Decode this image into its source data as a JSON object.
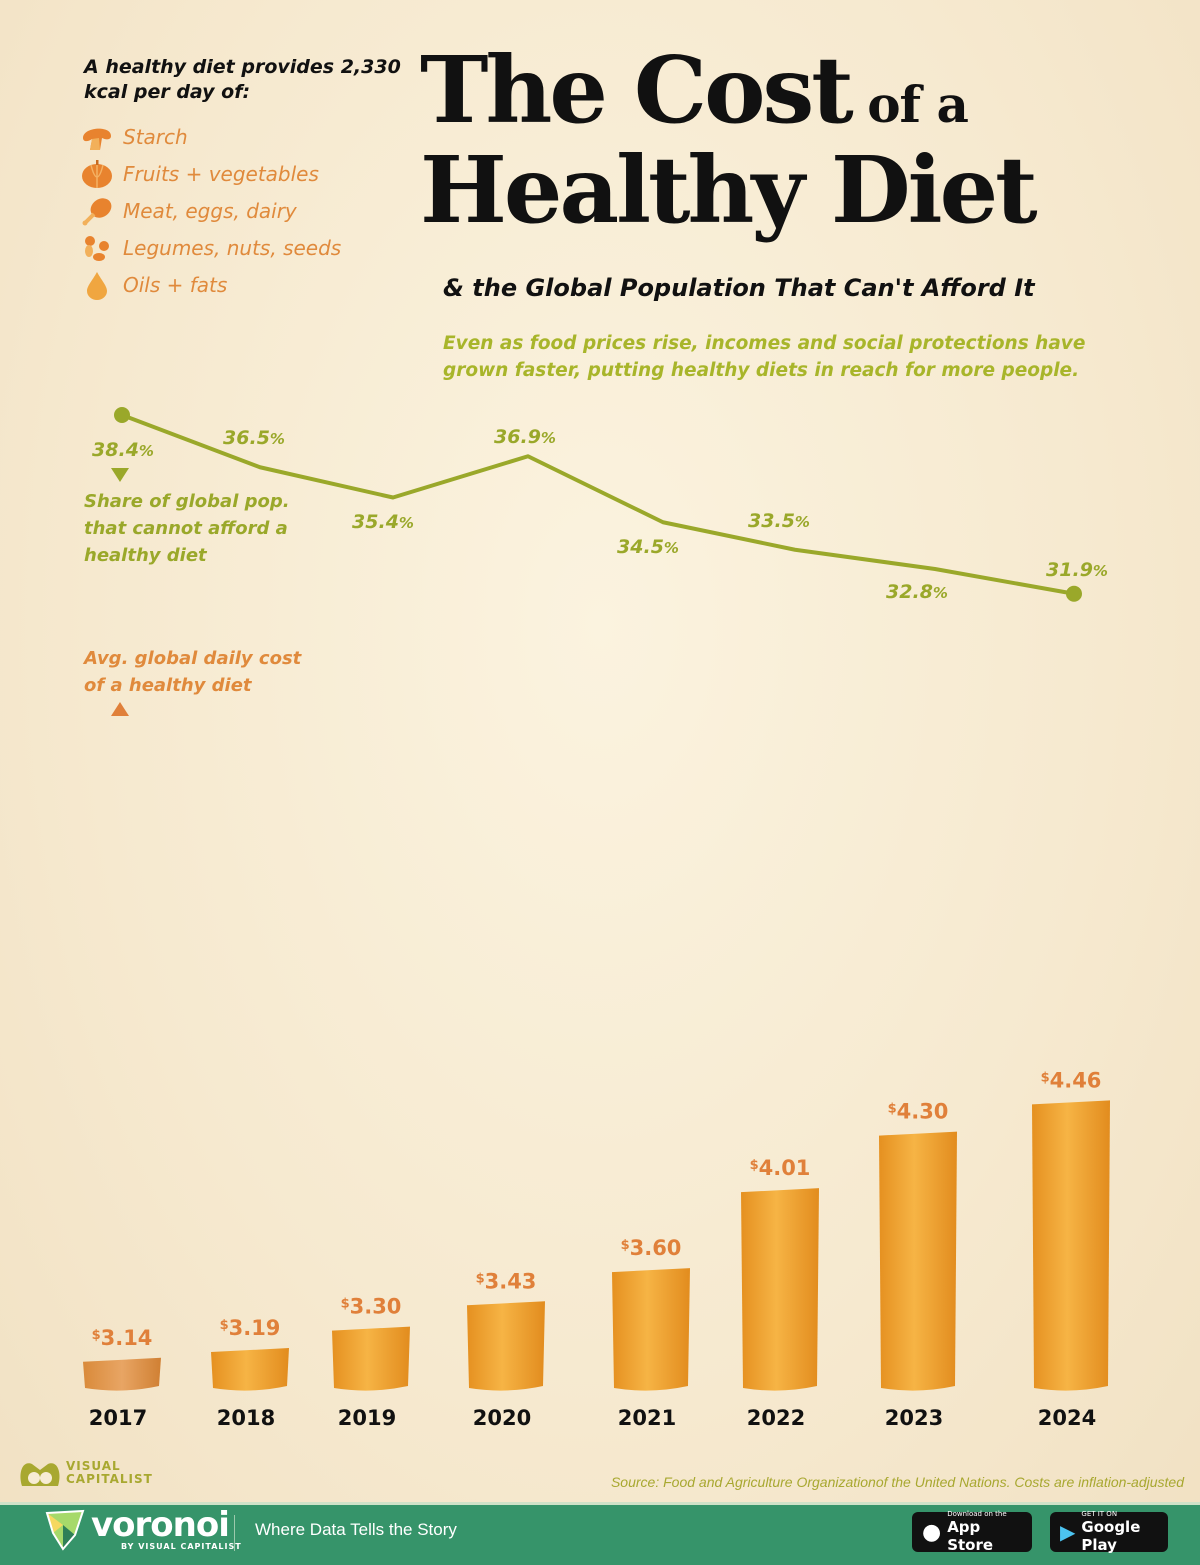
{
  "intro": "A healthy diet provides 2,330 kcal per day of:",
  "legend": [
    {
      "label": "Starch",
      "icon": "mushroom-icon"
    },
    {
      "label": "Fruits + vegetables",
      "icon": "pumpkin-icon"
    },
    {
      "label": "Meat, eggs, dairy",
      "icon": "drumstick-icon"
    },
    {
      "label": "Legumes, nuts, seeds",
      "icon": "legumes-icon"
    },
    {
      "label": "Oils + fats",
      "icon": "oil-drop-icon"
    }
  ],
  "title": {
    "line1_main": "The Cost",
    "line1_small": " of a",
    "line2": "Healthy Diet"
  },
  "subtitle": "& the Global Population That Can't Afford It",
  "description": "Even as food prices rise, incomes and social protections have grown faster, putting healthy diets in reach for more people.",
  "colors": {
    "line": "#9aa82a",
    "bar": "#f0a030",
    "cost_label": "#e0803a",
    "footer": "#36946a",
    "background": "#f7ecd4"
  },
  "chart_data": {
    "type": "bar+line",
    "categories": [
      "2017",
      "2018",
      "2019",
      "2020",
      "2021",
      "2022",
      "2023",
      "2024"
    ],
    "series": [
      {
        "name": "Avg. global daily cost of a healthy diet",
        "type": "bar",
        "unit": "$",
        "values": [
          3.14,
          3.19,
          3.3,
          3.43,
          3.6,
          4.01,
          4.3,
          4.46
        ],
        "labels": [
          "3.14",
          "3.19",
          "3.30",
          "3.43",
          "3.60",
          "4.01",
          "4.30",
          "4.46"
        ]
      },
      {
        "name": "Share of global pop. that cannot afford a healthy diet",
        "type": "line",
        "unit": "%",
        "values": [
          38.4,
          36.5,
          35.4,
          36.9,
          34.5,
          33.5,
          32.8,
          31.9
        ],
        "labels": [
          "38.4",
          "36.5",
          "35.4",
          "36.9",
          "34.5",
          "33.5",
          "32.8",
          "31.9"
        ]
      }
    ],
    "series_labels": {
      "line": "Share of global pop. that cannot afford a healthy diet",
      "bar": "Avg. global daily cost of a healthy diet"
    },
    "grid": false
  },
  "source": "Source: Food and Agriculture Organizationof the United Nations. Costs are inflation-adjusted",
  "branding": {
    "vc": "VISUAL CAPITALIST",
    "voronoi": "voronoi",
    "voronoi_by": "BY VISUAL CAPITALIST",
    "tagline": "Where Data Tells the Story"
  },
  "stores": [
    {
      "small": "Download on the",
      "big": "App Store"
    },
    {
      "small": "GET IT ON",
      "big": "Google Play"
    }
  ]
}
